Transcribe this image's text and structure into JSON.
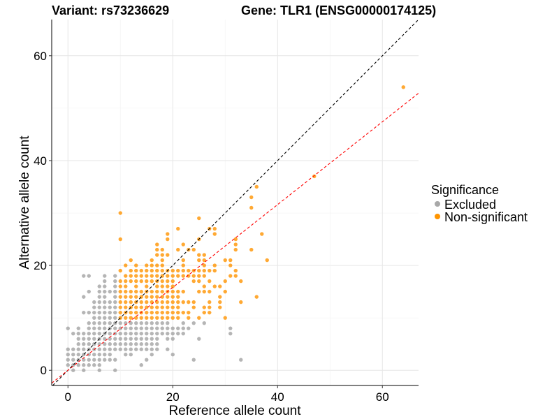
{
  "chart_data": {
    "type": "scatter",
    "title_left": "Variant: rs73236629",
    "title_right": "Gene: TLR1 (ENSG00000174125)",
    "xlabel": "Reference allele count",
    "ylabel": "Alternative allele count",
    "xlim": [
      -3.1,
      66.9
    ],
    "ylim": [
      -2.9,
      66.9
    ],
    "xticks": [
      "0",
      "20",
      "40",
      "60"
    ],
    "yticks": [
      "0",
      "20",
      "40",
      "60"
    ],
    "grid": true,
    "reference_lines": [
      {
        "name": "identity",
        "slope": 1,
        "intercept": 0,
        "color": "#000000",
        "style": "dashed"
      },
      {
        "name": "fit",
        "slope": 0.79,
        "intercept": 0,
        "color": "#ff0000",
        "style": "dashed"
      }
    ],
    "legend": {
      "title": "Significance",
      "placement": "right"
    },
    "series": [
      {
        "name": "Excluded",
        "color": "#a8a8a8",
        "rows": [
          {
            "y": 0,
            "x": [
              1,
              3,
              6,
              9
            ]
          },
          {
            "y": 1,
            "x": [
              0,
              1,
              2,
              3,
              4,
              5,
              6,
              14
            ]
          },
          {
            "y": 2,
            "x": [
              0,
              1,
              2,
              3,
              4,
              5,
              6,
              7,
              8,
              9,
              15,
              24,
              33
            ]
          },
          {
            "y": 3,
            "x": [
              0,
              1,
              2,
              3,
              4,
              5,
              6,
              7,
              8,
              11,
              12,
              16,
              20
            ]
          },
          {
            "y": 4,
            "x": [
              0,
              1,
              2,
              3,
              4,
              5,
              6,
              7,
              8,
              9,
              10,
              11,
              12,
              13,
              14,
              15,
              16,
              17,
              19
            ]
          },
          {
            "y": 5,
            "x": [
              2,
              3,
              4,
              5,
              6,
              7,
              8,
              9,
              10,
              11,
              12,
              13,
              14,
              15,
              16,
              17
            ]
          },
          {
            "y": 6,
            "x": [
              2,
              3,
              4,
              5,
              6,
              7,
              8,
              9,
              10,
              11,
              12,
              13,
              14,
              15,
              16,
              17,
              19,
              20,
              25
            ]
          },
          {
            "y": 7,
            "x": [
              1,
              2,
              3,
              4,
              5,
              6,
              7,
              8,
              9,
              10,
              11,
              12,
              13,
              14,
              15,
              16,
              17,
              18,
              19,
              20,
              21,
              22,
              31
            ]
          },
          {
            "y": 8,
            "x": [
              0,
              2,
              4,
              5,
              6,
              7,
              8,
              9,
              10,
              11,
              12,
              13,
              14,
              15,
              16,
              17,
              18,
              19,
              20,
              21,
              22,
              23,
              31
            ]
          },
          {
            "y": 9,
            "x": [
              4,
              5,
              6,
              7,
              8,
              9,
              10,
              11,
              12,
              13,
              14,
              15,
              16,
              17,
              18,
              19,
              22,
              24,
              26
            ]
          },
          {
            "y": 10,
            "x": [
              5,
              6,
              7,
              8,
              9
            ]
          },
          {
            "y": 11,
            "x": [
              3,
              4,
              5,
              6,
              7,
              8,
              9
            ]
          },
          {
            "y": 12,
            "x": [
              5,
              6,
              7,
              8,
              9
            ]
          },
          {
            "y": 13,
            "x": [
              5,
              6,
              7,
              8,
              9
            ]
          },
          {
            "y": 14,
            "x": [
              3,
              6,
              7,
              9
            ]
          },
          {
            "y": 15,
            "x": [
              4,
              6,
              7,
              8,
              9
            ]
          },
          {
            "y": 16,
            "x": [
              6,
              7,
              9
            ]
          },
          {
            "y": 17,
            "x": [
              7,
              9
            ]
          },
          {
            "y": 18,
            "x": [
              3,
              4,
              7,
              9
            ]
          }
        ]
      },
      {
        "name": "Non-significant",
        "color": "#ff9400",
        "rows": [
          {
            "y": 10,
            "x": [
              10,
              11,
              12,
              13,
              14,
              15,
              16,
              17,
              18,
              19,
              20,
              21,
              23,
              25,
              30
            ]
          },
          {
            "y": 11,
            "x": [
              10,
              11,
              12,
              13,
              14,
              15,
              16,
              17,
              18,
              19,
              20,
              21,
              22,
              23,
              26,
              27
            ]
          },
          {
            "y": 12,
            "x": [
              10,
              11,
              12,
              13,
              14,
              15,
              16,
              17,
              18,
              19,
              20,
              21,
              24,
              26,
              27,
              29
            ]
          },
          {
            "y": 13,
            "x": [
              10,
              11,
              12,
              13,
              14,
              15,
              16,
              17,
              18,
              19,
              20,
              21,
              22,
              23,
              24,
              27,
              29,
              33
            ]
          },
          {
            "y": 14,
            "x": [
              10,
              11,
              12,
              13,
              14,
              15,
              16,
              17,
              18,
              19,
              20,
              21,
              29,
              36
            ]
          },
          {
            "y": 15,
            "x": [
              10,
              11,
              12,
              13,
              14,
              15,
              16,
              17,
              18,
              19,
              20,
              21,
              22,
              25,
              26,
              27,
              30
            ]
          },
          {
            "y": 16,
            "x": [
              10,
              11,
              13,
              15,
              17,
              18,
              19,
              20,
              26,
              28,
              29
            ]
          },
          {
            "y": 17,
            "x": [
              10,
              11,
              12,
              13,
              14,
              15,
              16,
              17,
              18,
              19,
              20,
              24,
              25,
              27,
              30,
              33
            ]
          },
          {
            "y": 18,
            "x": [
              11,
              12,
              13,
              14,
              15,
              16,
              17,
              18,
              19,
              20,
              21,
              22,
              23,
              24,
              25,
              26,
              31,
              32
            ]
          },
          {
            "y": 19,
            "x": [
              10,
              12,
              13,
              14,
              15,
              16,
              17,
              18,
              19,
              20,
              21,
              22,
              23,
              24,
              25,
              26,
              27,
              28,
              32
            ]
          },
          {
            "y": 20,
            "x": [
              11,
              13,
              15,
              16,
              17,
              18,
              22,
              26,
              28,
              31
            ]
          },
          {
            "y": 21,
            "x": [
              12,
              16,
              18,
              22,
              25,
              26,
              30,
              31,
              38
            ]
          },
          {
            "y": 22,
            "x": [
              17,
              18,
              19,
              25,
              26
            ]
          },
          {
            "y": 23,
            "x": [
              17,
              18,
              21,
              23,
              24,
              32,
              35
            ]
          },
          {
            "y": 24,
            "x": [
              17,
              22,
              32
            ]
          },
          {
            "y": 25,
            "x": [
              10,
              19,
              25,
              32
            ]
          },
          {
            "y": 26,
            "x": [
              19,
              28,
              37
            ]
          },
          {
            "y": 27,
            "x": [
              21,
              27,
              28
            ]
          },
          {
            "y": 29,
            "x": [
              25
            ]
          },
          {
            "y": 30,
            "x": [
              10
            ]
          },
          {
            "y": 31,
            "x": [
              35
            ]
          },
          {
            "y": 33,
            "x": [
              35
            ]
          },
          {
            "y": 35,
            "x": [
              36
            ]
          },
          {
            "y": 37,
            "x": [
              47
            ]
          },
          {
            "y": 54,
            "x": [
              64
            ]
          }
        ]
      }
    ]
  }
}
